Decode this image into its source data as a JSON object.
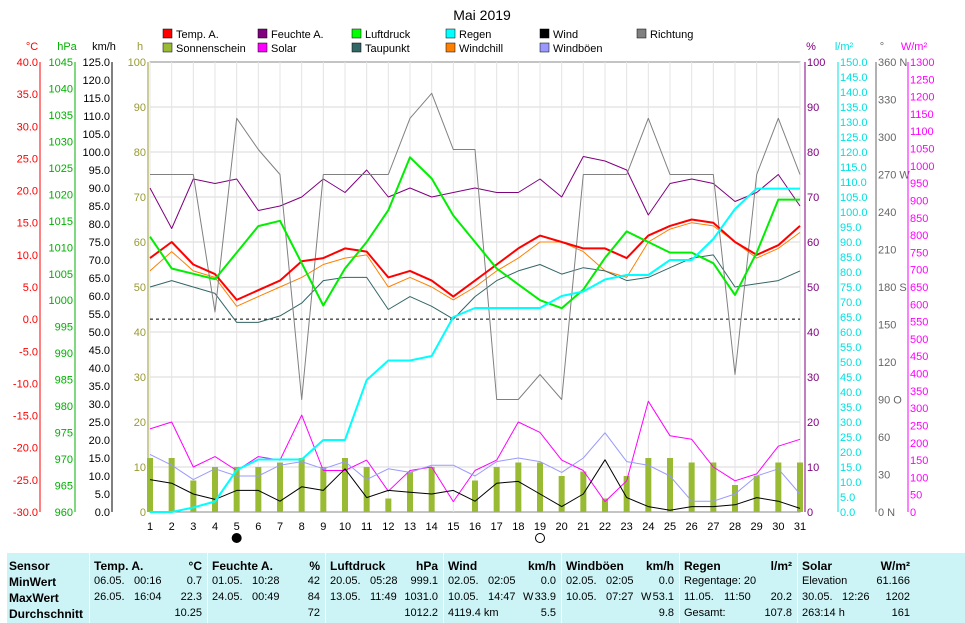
{
  "chart_data": {
    "type": "line",
    "title": "Mai 2019",
    "x": [
      1,
      2,
      3,
      4,
      5,
      6,
      7,
      8,
      9,
      10,
      11,
      12,
      13,
      14,
      15,
      16,
      17,
      18,
      19,
      20,
      21,
      22,
      23,
      24,
      25,
      26,
      27,
      28,
      29,
      30,
      31
    ],
    "x_ticks": [
      "1",
      "2",
      "3",
      "4",
      "5",
      "6",
      "7",
      "8",
      "9",
      "10",
      "11",
      "12",
      "13",
      "14",
      "15",
      "16",
      "17",
      "18",
      "19",
      "20",
      "21",
      "22",
      "23",
      "24",
      "25",
      "26",
      "27",
      "28",
      "29",
      "30",
      "31"
    ],
    "axes": {
      "temp": {
        "label": "°C",
        "min": -30,
        "max": 40,
        "step": 5,
        "color": "#ff0000"
      },
      "pressure": {
        "label": "hPa",
        "min": 960,
        "max": 1045,
        "step": 5,
        "color": "#00b000"
      },
      "wind": {
        "label": "km/h",
        "min": 0,
        "max": 125,
        "step": 5,
        "color": "#000000"
      },
      "sun": {
        "label": "h",
        "min": 0,
        "max": 100,
        "step": 10,
        "color": "#999933"
      },
      "humidity": {
        "label": "%",
        "min": 0,
        "max": 100,
        "step": 10,
        "color": "#800080"
      },
      "rain": {
        "label": "l/m²",
        "min": 0,
        "max": 150,
        "step": 5,
        "color": "#00e0e0"
      },
      "direction": {
        "label": "°",
        "min": 0,
        "max": 360,
        "step": 30,
        "color": "#666666",
        "compass": {
          "0": "N",
          "90": "O",
          "180": "S",
          "270": "W",
          "360": "N"
        }
      },
      "solar": {
        "label": "W/m²",
        "min": 0,
        "max": 1300,
        "step": 50,
        "color": "#ff00ff"
      }
    },
    "legend": [
      {
        "name": "Temp. A.",
        "color": "#ff0000"
      },
      {
        "name": "Feuchte A.",
        "color": "#800080"
      },
      {
        "name": "Luftdruck",
        "color": "#00ff00"
      },
      {
        "name": "Regen",
        "color": "#00ffff"
      },
      {
        "name": "Wind",
        "color": "#000000"
      },
      {
        "name": "Richtung",
        "color": "#808080"
      },
      {
        "name": "Sonnenschein",
        "color": "#99bb33"
      },
      {
        "name": "Solar",
        "color": "#ff00ff"
      },
      {
        "name": "Taupunkt",
        "color": "#336666"
      },
      {
        "name": "Windchill",
        "color": "#ff8000"
      },
      {
        "name": "Windböen",
        "color": "#9999ff"
      }
    ],
    "reference_line": {
      "axis": "temp",
      "value": 0
    },
    "moon_phases": [
      {
        "day": 5,
        "phase": "new"
      },
      {
        "day": 19,
        "phase": "full"
      }
    ],
    "series": [
      {
        "name": "Temp. A.",
        "axis": "temp",
        "color": "#ff0000",
        "width": 2,
        "values": [
          9.5,
          12.0,
          8.5,
          7.0,
          3.0,
          4.5,
          6.0,
          9.0,
          9.5,
          11.0,
          10.5,
          6.5,
          7.5,
          6.0,
          3.5,
          6.0,
          8.5,
          11.0,
          13.0,
          12.0,
          11.0,
          11.0,
          9.5,
          13.0,
          14.5,
          15.5,
          15.0,
          12.0,
          10.0,
          11.5,
          14.5
        ]
      },
      {
        "name": "Windchill",
        "axis": "temp",
        "color": "#ff8000",
        "width": 1,
        "values": [
          7.5,
          10.5,
          7.5,
          6.5,
          2.0,
          3.5,
          5.0,
          6.5,
          8.5,
          9.5,
          10.0,
          5.0,
          6.5,
          5.0,
          3.0,
          5.0,
          7.5,
          9.5,
          12.0,
          12.0,
          10.5,
          7.5,
          6.5,
          12.0,
          14.0,
          15.0,
          14.5,
          12.0,
          9.5,
          11.0,
          13.5
        ]
      },
      {
        "name": "Taupunkt",
        "axis": "temp",
        "color": "#336666",
        "width": 1,
        "values": [
          5.0,
          6.0,
          5.0,
          4.0,
          -0.5,
          -0.5,
          0.5,
          2.5,
          6.0,
          6.5,
          6.5,
          1.5,
          3.5,
          2.0,
          0.0,
          3.5,
          6.0,
          7.5,
          8.5,
          7.0,
          8.0,
          7.5,
          6.0,
          6.5,
          8.0,
          9.5,
          10.0,
          5.0,
          5.5,
          6.0,
          7.5
        ]
      },
      {
        "name": "Luftdruck",
        "axis": "pressure",
        "color": "#00ee00",
        "width": 2,
        "values": [
          1012,
          1006,
          1005,
          1004,
          1009,
          1014,
          1015,
          1007,
          999,
          1006,
          1011,
          1017,
          1027,
          1023,
          1016,
          1011,
          1006,
          1003,
          1000,
          998.5,
          1002,
          1008,
          1013,
          1011,
          1009,
          1009,
          1007,
          1001,
          1009,
          1019,
          1019
        ]
      },
      {
        "name": "Regen",
        "axis": "rain",
        "color": "#00ffff",
        "width": 2,
        "values": [
          0,
          0,
          1.5,
          3.5,
          14,
          17.5,
          17.5,
          17.5,
          24,
          24,
          44,
          50.5,
          50.5,
          52,
          65,
          68,
          68,
          68,
          68,
          72,
          73.5,
          77.5,
          79,
          79,
          84,
          84,
          91,
          101,
          107.8,
          107.8,
          107.8
        ]
      },
      {
        "name": "Feuchte A.",
        "axis": "humidity",
        "color": "#800080",
        "width": 1,
        "values": [
          72,
          63,
          74,
          73,
          74,
          67,
          68,
          70,
          74,
          71,
          76,
          70,
          72,
          70,
          71,
          72,
          71,
          71,
          74,
          70,
          79,
          78,
          76,
          66,
          73,
          74,
          73,
          69,
          71,
          75,
          68
        ]
      },
      {
        "name": "Richtung",
        "axis": "direction",
        "color": "#808080",
        "width": 1,
        "values": [
          270,
          270,
          270,
          160,
          315,
          290,
          270,
          90,
          270,
          270,
          270,
          270,
          315,
          335,
          290,
          290,
          90,
          90,
          110,
          90,
          270,
          270,
          270,
          315,
          270,
          270,
          270,
          110,
          270,
          315,
          270
        ]
      },
      {
        "name": "Solar",
        "axis": "solar",
        "color": "#ff00ff",
        "width": 1,
        "values": [
          240,
          260,
          130,
          160,
          120,
          160,
          150,
          280,
          120,
          120,
          150,
          60,
          120,
          130,
          30,
          120,
          150,
          260,
          230,
          150,
          120,
          30,
          90,
          320,
          220,
          210,
          130,
          90,
          110,
          190,
          210
        ]
      },
      {
        "name": "Windböen",
        "axis": "wind",
        "color": "#9999ff",
        "width": 1,
        "values": [
          16,
          13,
          9,
          12,
          10,
          10,
          13,
          14,
          12,
          14,
          9,
          12,
          11,
          13,
          13,
          10,
          14,
          15,
          14,
          11,
          15,
          22,
          14,
          13,
          10,
          3,
          3,
          5,
          10,
          12,
          5
        ]
      },
      {
        "name": "Wind",
        "axis": "wind",
        "color": "#000000",
        "width": 1,
        "values": [
          9,
          8,
          5,
          3.5,
          6,
          6,
          3,
          7,
          6,
          12,
          4,
          6,
          5.5,
          5,
          6,
          3,
          8,
          8.5,
          5,
          1.5,
          5,
          14.5,
          4,
          1.5,
          0.5,
          1.5,
          1.5,
          2,
          4,
          3,
          1
        ]
      }
    ],
    "bars": {
      "name": "Sonnenschein",
      "axis": "sun",
      "color": "#99bb33",
      "values": [
        12,
        12,
        7,
        10,
        10,
        10,
        11,
        12,
        10,
        12,
        10,
        3,
        9,
        10,
        0,
        7,
        10,
        11,
        11,
        8,
        9,
        3,
        8,
        12,
        12,
        11,
        11,
        6,
        8,
        11,
        11
      ]
    }
  },
  "stats": {
    "headers": {
      "sensor": "Sensor",
      "temp": {
        "name": "Temp. A.",
        "unit": "°C"
      },
      "feuchte": {
        "name": "Feuchte A.",
        "unit": "%"
      },
      "druck": {
        "name": "Luftdruck",
        "unit": "hPa"
      },
      "wind": {
        "name": "Wind",
        "unit": "km/h"
      },
      "boeen": {
        "name": "Windböen",
        "unit": "km/h"
      },
      "regen": {
        "name": "Regen",
        "unit": "l/m²"
      },
      "solar": {
        "name": "Solar",
        "unit": "W/m²"
      }
    },
    "rows": {
      "min": "MinWert",
      "max": "MaxWert",
      "avg": "Durchschnitt"
    },
    "temp": {
      "min_date": "06.05.",
      "min_time": "00:16",
      "min_val": "0.7",
      "max_date": "26.05.",
      "max_time": "16:04",
      "max_val": "22.3",
      "avg": "10.25"
    },
    "feuchte": {
      "min_date": "01.05.",
      "min_time": "10:28",
      "min_val": "42",
      "max_date": "24.05.",
      "max_time": "00:49",
      "max_val": "84",
      "avg": "72"
    },
    "druck": {
      "min_date": "20.05.",
      "min_time": "05:28",
      "min_val": "999.1",
      "max_date": "13.05.",
      "max_time": "11:49",
      "max_val": "1031.0",
      "avg": "1012.2"
    },
    "wind": {
      "min_date": "02.05.",
      "min_time": "02:05",
      "min_val": "0.0",
      "max_date": "10.05.",
      "max_time": "14:47",
      "max_dir": "W",
      "max_val": "33.9",
      "avg_label": "4119.4 km",
      "avg": "5.5"
    },
    "boeen": {
      "min_date": "02.05.",
      "min_time": "02:05",
      "min_val": "0.0",
      "max_date": "10.05.",
      "max_time": "07:27",
      "max_dir": "W",
      "max_val": "53.1",
      "avg": "9.8"
    },
    "regen": {
      "days_label": "Regentage: 20",
      "max_date": "11.05.",
      "max_time": "11:50",
      "max_val": "20.2",
      "total_label": "Gesamt:",
      "total": "107.8"
    },
    "solar": {
      "elev_label": "Elevation",
      "elev": "61.166",
      "max_date": "30.05.",
      "max_time": "12:26",
      "max_val": "1202",
      "hours": "263:14 h",
      "avg": "161"
    }
  }
}
